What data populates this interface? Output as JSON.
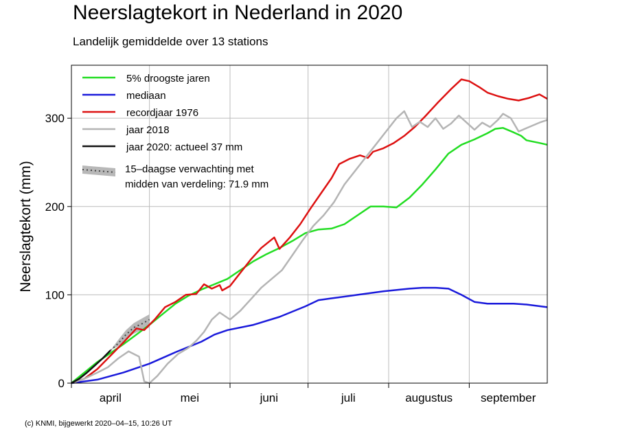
{
  "title": "Neerslagtekort in Nederland in 2020",
  "subtitle": "Landelijk gemiddelde over 13 stations",
  "credit": "(c) KNMI, bijgewerkt 2020–04–15, 10:26 UT",
  "chart_data": {
    "type": "line",
    "title": "Neerslagtekort in Nederland in 2020",
    "subtitle": "Landelijk gemiddelde over 13 stations",
    "ylabel": "Neerslagtekort (mm)",
    "xlabel": "",
    "x_unit": "day since 1 april",
    "xlim": [
      0,
      183
    ],
    "ylim": [
      0,
      360
    ],
    "yticks": [
      0,
      100,
      200,
      300
    ],
    "grid": true,
    "months": [
      {
        "label": "april",
        "start": 0,
        "end": 30
      },
      {
        "label": "mei",
        "start": 30,
        "end": 61
      },
      {
        "label": "juni",
        "start": 61,
        "end": 91
      },
      {
        "label": "juli",
        "start": 91,
        "end": 122
      },
      {
        "label": "augustus",
        "start": 122,
        "end": 153
      },
      {
        "label": "september",
        "start": 153,
        "end": 183
      }
    ],
    "legend_position": "top-left",
    "series": [
      {
        "name": "5% droogste jaren",
        "color": "#22dd22",
        "points": [
          [
            0,
            0
          ],
          [
            5,
            12
          ],
          [
            10,
            24
          ],
          [
            15,
            34
          ],
          [
            20,
            44
          ],
          [
            25,
            55
          ],
          [
            30,
            66
          ],
          [
            35,
            78
          ],
          [
            40,
            90
          ],
          [
            45,
            99
          ],
          [
            50,
            106
          ],
          [
            55,
            112
          ],
          [
            60,
            118
          ],
          [
            65,
            128
          ],
          [
            70,
            138
          ],
          [
            75,
            146
          ],
          [
            80,
            153
          ],
          [
            85,
            161
          ],
          [
            90,
            170
          ],
          [
            95,
            174
          ],
          [
            100,
            175
          ],
          [
            105,
            180
          ],
          [
            110,
            190
          ],
          [
            115,
            200
          ],
          [
            120,
            200
          ],
          [
            125,
            199
          ],
          [
            130,
            210
          ],
          [
            135,
            225
          ],
          [
            140,
            242
          ],
          [
            145,
            260
          ],
          [
            150,
            270
          ],
          [
            155,
            276
          ],
          [
            160,
            283
          ],
          [
            163,
            288
          ],
          [
            166,
            289
          ],
          [
            170,
            284
          ],
          [
            173,
            280
          ],
          [
            175,
            275
          ],
          [
            180,
            272
          ],
          [
            183,
            270
          ]
        ]
      },
      {
        "name": "mediaan",
        "color": "#1a1adb",
        "points": [
          [
            0,
            0
          ],
          [
            10,
            4
          ],
          [
            20,
            12
          ],
          [
            30,
            22
          ],
          [
            40,
            35
          ],
          [
            50,
            47
          ],
          [
            55,
            55
          ],
          [
            60,
            60
          ],
          [
            70,
            66
          ],
          [
            80,
            75
          ],
          [
            90,
            87
          ],
          [
            95,
            94
          ],
          [
            100,
            96
          ],
          [
            110,
            100
          ],
          [
            120,
            104
          ],
          [
            130,
            107
          ],
          [
            135,
            108
          ],
          [
            140,
            108
          ],
          [
            145,
            107
          ],
          [
            150,
            100
          ],
          [
            155,
            92
          ],
          [
            160,
            90
          ],
          [
            170,
            90
          ],
          [
            175,
            89
          ],
          [
            183,
            86
          ]
        ]
      },
      {
        "name": "recordjaar 1976",
        "color": "#dd1111",
        "points": [
          [
            0,
            0
          ],
          [
            5,
            5
          ],
          [
            10,
            16
          ],
          [
            15,
            31
          ],
          [
            20,
            46
          ],
          [
            25,
            62
          ],
          [
            28,
            60
          ],
          [
            32,
            72
          ],
          [
            36,
            86
          ],
          [
            40,
            92
          ],
          [
            44,
            100
          ],
          [
            48,
            101
          ],
          [
            51,
            112
          ],
          [
            54,
            107
          ],
          [
            57,
            111
          ],
          [
            58,
            105
          ],
          [
            61,
            110
          ],
          [
            65,
            125
          ],
          [
            69,
            140
          ],
          [
            73,
            153
          ],
          [
            78,
            165
          ],
          [
            80,
            152
          ],
          [
            84,
            165
          ],
          [
            88,
            180
          ],
          [
            92,
            198
          ],
          [
            96,
            215
          ],
          [
            100,
            232
          ],
          [
            103,
            248
          ],
          [
            107,
            254
          ],
          [
            111,
            258
          ],
          [
            114,
            255
          ],
          [
            116,
            262
          ],
          [
            120,
            266
          ],
          [
            124,
            272
          ],
          [
            128,
            280
          ],
          [
            132,
            290
          ],
          [
            136,
            302
          ],
          [
            141,
            318
          ],
          [
            146,
            333
          ],
          [
            150,
            344
          ],
          [
            153,
            342
          ],
          [
            157,
            335
          ],
          [
            160,
            329
          ],
          [
            164,
            325
          ],
          [
            168,
            322
          ],
          [
            172,
            320
          ],
          [
            176,
            323
          ],
          [
            180,
            327
          ],
          [
            183,
            322
          ]
        ]
      },
      {
        "name": "jaar 2018",
        "color": "#b4b4b4",
        "points": [
          [
            0,
            0
          ],
          [
            5,
            5
          ],
          [
            10,
            12
          ],
          [
            14,
            18
          ],
          [
            18,
            28
          ],
          [
            22,
            36
          ],
          [
            26,
            30
          ],
          [
            28,
            2
          ],
          [
            30,
            0
          ],
          [
            33,
            8
          ],
          [
            37,
            22
          ],
          [
            41,
            33
          ],
          [
            45,
            40
          ],
          [
            48,
            48
          ],
          [
            51,
            58
          ],
          [
            54,
            72
          ],
          [
            57,
            80
          ],
          [
            61,
            72
          ],
          [
            65,
            82
          ],
          [
            69,
            95
          ],
          [
            73,
            108
          ],
          [
            77,
            118
          ],
          [
            81,
            128
          ],
          [
            85,
            145
          ],
          [
            89,
            162
          ],
          [
            93,
            178
          ],
          [
            97,
            190
          ],
          [
            101,
            205
          ],
          [
            105,
            225
          ],
          [
            109,
            240
          ],
          [
            113,
            255
          ],
          [
            117,
            270
          ],
          [
            121,
            285
          ],
          [
            125,
            300
          ],
          [
            128,
            308
          ],
          [
            131,
            290
          ],
          [
            134,
            296
          ],
          [
            137,
            290
          ],
          [
            140,
            300
          ],
          [
            143,
            288
          ],
          [
            146,
            294
          ],
          [
            149,
            303
          ],
          [
            152,
            295
          ],
          [
            155,
            287
          ],
          [
            158,
            295
          ],
          [
            161,
            290
          ],
          [
            164,
            298
          ],
          [
            166,
            305
          ],
          [
            169,
            300
          ],
          [
            172,
            285
          ],
          [
            176,
            290
          ],
          [
            180,
            295
          ],
          [
            183,
            298
          ]
        ]
      },
      {
        "name": "jaar 2020: actueel 37 mm",
        "color": "#111111",
        "points": [
          [
            0,
            0
          ],
          [
            3,
            5
          ],
          [
            6,
            12
          ],
          [
            9,
            20
          ],
          [
            12,
            28
          ],
          [
            14,
            34
          ],
          [
            15,
            37
          ]
        ]
      },
      {
        "name": "15–daagse verwachting met midden van verdeling: 71.9 mm",
        "color": "#444444",
        "forecast_center": [
          [
            15,
            37
          ],
          [
            18,
            45
          ],
          [
            21,
            55
          ],
          [
            24,
            63
          ],
          [
            27,
            67
          ],
          [
            30,
            72
          ]
        ],
        "band_upper": [
          [
            15,
            37
          ],
          [
            18,
            49
          ],
          [
            21,
            60
          ],
          [
            24,
            68
          ],
          [
            27,
            73
          ],
          [
            30,
            78
          ]
        ],
        "band_lower": [
          [
            15,
            37
          ],
          [
            18,
            42
          ],
          [
            21,
            50
          ],
          [
            24,
            56
          ],
          [
            27,
            60
          ],
          [
            30,
            63
          ]
        ]
      }
    ]
  }
}
